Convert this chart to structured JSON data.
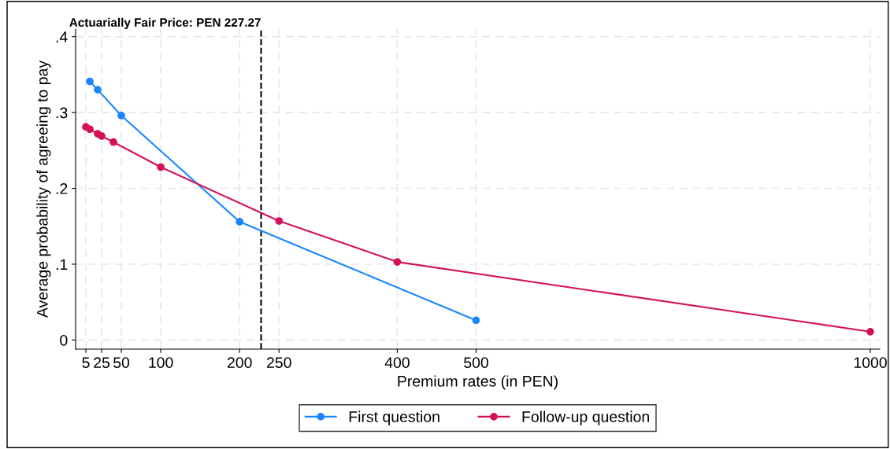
{
  "chart_data": {
    "type": "line",
    "xlabel": "Premium rates (in PEN)",
    "ylabel": "Average probability of agreeing to pay",
    "xlim": [
      -8,
      1012
    ],
    "xticks": [
      5,
      25,
      50,
      100,
      200,
      250,
      400,
      500,
      1000
    ],
    "ylim": [
      -0.012,
      0.41
    ],
    "yticks": [
      {
        "value": 0,
        "label": "0"
      },
      {
        "value": 0.1,
        "label": ".1"
      },
      {
        "value": 0.2,
        "label": ".2"
      },
      {
        "value": 0.3,
        "label": ".3"
      },
      {
        "value": 0.4,
        "label": ".4"
      }
    ],
    "grid": true,
    "legend": "bottom",
    "marker": "circle",
    "line_style": "solid",
    "ref_lines": [
      {
        "axis": "x",
        "value": 227.27,
        "label": "Actuarially Fair Price: PEN 227.27",
        "color": "#000000",
        "line_style": "dashed"
      }
    ],
    "series": [
      {
        "name": "First question",
        "color": "#1a85ff",
        "x": [
          10,
          20,
          50,
          200,
          500
        ],
        "values": [
          0.341,
          0.33,
          0.296,
          0.156,
          0.026
        ]
      },
      {
        "name": "Follow-up question",
        "color": "#d41159",
        "x": [
          5,
          10,
          20,
          25,
          40,
          100,
          250,
          400,
          1000
        ],
        "values": [
          0.281,
          0.278,
          0.272,
          0.269,
          0.261,
          0.228,
          0.157,
          0.103,
          0.011
        ]
      }
    ]
  }
}
